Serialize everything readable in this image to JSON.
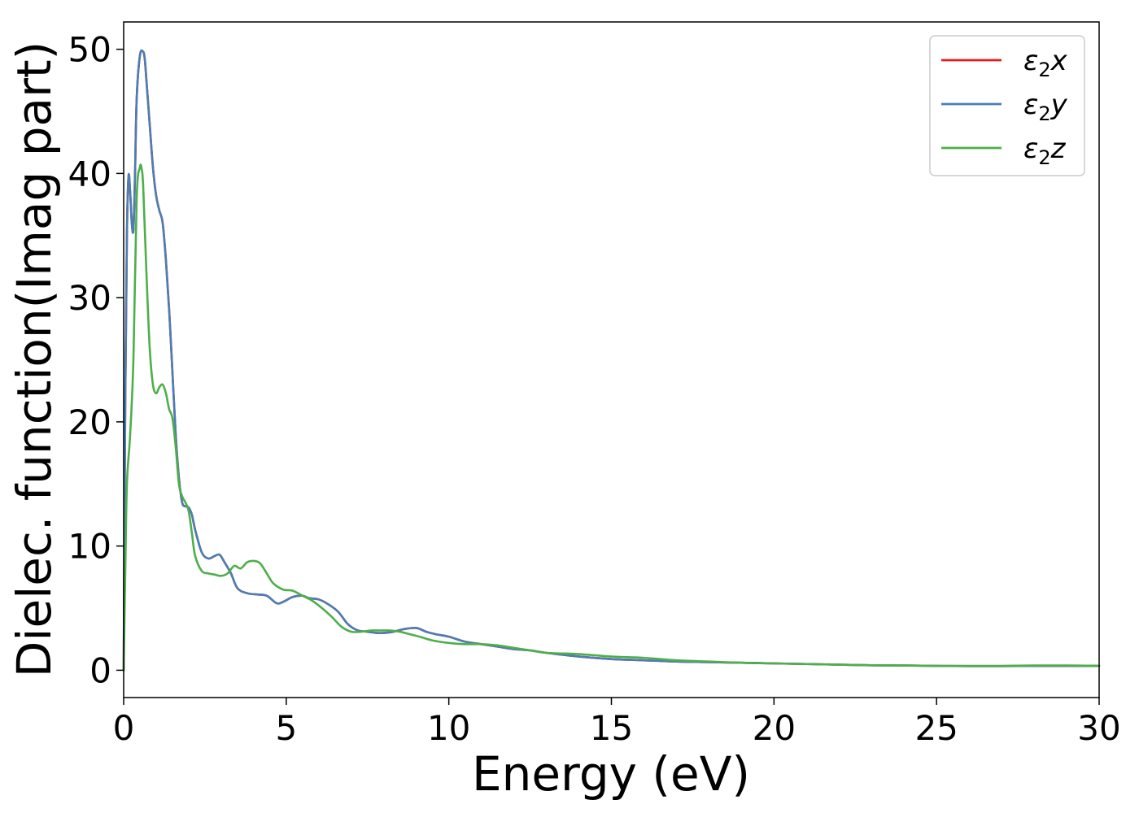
{
  "chart_data": {
    "type": "line",
    "xlabel": "Energy (eV)",
    "ylabel": "Dielec. function(Imag part)",
    "xlim": [
      0,
      30
    ],
    "ylim": [
      -2.2,
      52.2
    ],
    "xticks": [
      0,
      5,
      10,
      15,
      20,
      25,
      30
    ],
    "yticks": [
      0,
      10,
      20,
      30,
      40,
      50
    ],
    "grid": false,
    "legend_position": "top-right",
    "series": [
      {
        "name": "ε2x",
        "legend_base": "ε",
        "legend_sub": "2",
        "legend_suffix": "x",
        "color": "#e41a1c",
        "x": [
          0,
          0.05,
          0.1,
          0.15,
          0.2,
          0.25,
          0.3,
          0.35,
          0.4,
          0.5,
          0.6,
          0.65,
          0.7,
          0.8,
          0.9,
          1.0,
          1.1,
          1.2,
          1.3,
          1.4,
          1.5,
          1.6,
          1.7,
          1.8,
          1.9,
          2.0,
          2.1,
          2.2,
          2.4,
          2.6,
          2.8,
          2.95,
          3.1,
          3.3,
          3.5,
          3.8,
          4.1,
          4.4,
          4.7,
          4.9,
          5.2,
          5.5,
          5.7,
          6.0,
          6.3,
          6.6,
          6.9,
          7.2,
          7.5,
          7.8,
          8.0,
          8.3,
          8.6,
          9.0,
          9.3,
          9.6,
          10.0,
          10.5,
          11.0,
          11.5,
          12.0,
          12.5,
          13.0,
          14.0,
          15.0,
          16.0,
          17.0,
          18.0,
          19.0,
          20.0,
          21.0,
          22.0,
          23.0,
          24.0,
          25.0,
          26.0,
          27.0,
          28.0,
          29.0,
          30.0
        ],
        "values": [
          0,
          22,
          35,
          39.8,
          38.5,
          36,
          35.5,
          40,
          46,
          49.5,
          49.8,
          49.2,
          47.5,
          44,
          40.5,
          38.2,
          37,
          36,
          33,
          29,
          24,
          19,
          15.5,
          13.5,
          13.2,
          13.1,
          12.5,
          11.3,
          9.5,
          9.0,
          9.2,
          9.3,
          8.7,
          7.8,
          6.6,
          6.2,
          6.1,
          6.0,
          5.4,
          5.5,
          5.9,
          6.0,
          5.8,
          5.7,
          5.3,
          4.7,
          3.7,
          3.2,
          3.1,
          3.0,
          3.0,
          3.1,
          3.3,
          3.4,
          3.1,
          2.9,
          2.7,
          2.3,
          2.1,
          1.9,
          1.7,
          1.6,
          1.4,
          1.1,
          0.9,
          0.8,
          0.7,
          0.65,
          0.6,
          0.55,
          0.5,
          0.45,
          0.4,
          0.38,
          0.35,
          0.33,
          0.33,
          0.35,
          0.35,
          0.35
        ]
      },
      {
        "name": "ε2y",
        "legend_base": "ε",
        "legend_sub": "2",
        "legend_suffix": "y",
        "color": "#4a7eb4",
        "x": [
          0,
          0.05,
          0.1,
          0.15,
          0.2,
          0.25,
          0.3,
          0.35,
          0.4,
          0.5,
          0.6,
          0.65,
          0.7,
          0.8,
          0.9,
          1.0,
          1.1,
          1.2,
          1.3,
          1.4,
          1.5,
          1.6,
          1.7,
          1.8,
          1.9,
          2.0,
          2.1,
          2.2,
          2.4,
          2.6,
          2.8,
          2.95,
          3.1,
          3.3,
          3.5,
          3.8,
          4.1,
          4.4,
          4.7,
          4.9,
          5.2,
          5.5,
          5.7,
          6.0,
          6.3,
          6.6,
          6.9,
          7.2,
          7.5,
          7.8,
          8.0,
          8.3,
          8.6,
          9.0,
          9.3,
          9.6,
          10.0,
          10.5,
          11.0,
          11.5,
          12.0,
          12.5,
          13.0,
          14.0,
          15.0,
          16.0,
          17.0,
          18.0,
          19.0,
          20.0,
          21.0,
          22.0,
          23.0,
          24.0,
          25.0,
          26.0,
          27.0,
          28.0,
          29.0,
          30.0
        ],
        "values": [
          0,
          22,
          35,
          39.8,
          38.5,
          36,
          35.5,
          40,
          46,
          49.5,
          49.8,
          49.2,
          47.5,
          44,
          40.5,
          38.2,
          37,
          36,
          33,
          29,
          24,
          19,
          15.5,
          13.5,
          13.2,
          13.1,
          12.5,
          11.3,
          9.5,
          9.0,
          9.2,
          9.3,
          8.7,
          7.8,
          6.6,
          6.2,
          6.1,
          6.0,
          5.4,
          5.5,
          5.9,
          6.0,
          5.8,
          5.7,
          5.3,
          4.7,
          3.7,
          3.2,
          3.1,
          3.0,
          3.0,
          3.1,
          3.3,
          3.4,
          3.1,
          2.9,
          2.7,
          2.3,
          2.1,
          1.9,
          1.7,
          1.6,
          1.4,
          1.1,
          0.9,
          0.8,
          0.7,
          0.65,
          0.6,
          0.55,
          0.5,
          0.45,
          0.4,
          0.38,
          0.35,
          0.33,
          0.33,
          0.35,
          0.35,
          0.35
        ]
      },
      {
        "name": "ε2z",
        "legend_base": "ε",
        "legend_sub": "2",
        "legend_suffix": "z",
        "color": "#4daf4a",
        "x": [
          0,
          0.05,
          0.1,
          0.2,
          0.3,
          0.4,
          0.5,
          0.55,
          0.6,
          0.7,
          0.8,
          0.9,
          1.0,
          1.1,
          1.2,
          1.3,
          1.4,
          1.5,
          1.6,
          1.7,
          1.8,
          1.9,
          2.0,
          2.1,
          2.2,
          2.4,
          2.6,
          2.8,
          3.0,
          3.2,
          3.4,
          3.6,
          3.8,
          4.0,
          4.2,
          4.4,
          4.6,
          4.9,
          5.2,
          5.5,
          5.8,
          6.1,
          6.4,
          6.7,
          7.0,
          7.3,
          7.6,
          7.9,
          8.2,
          8.5,
          8.8,
          9.1,
          9.5,
          10.0,
          10.5,
          11.0,
          11.5,
          12.0,
          12.5,
          13.0,
          14.0,
          15.0,
          16.0,
          17.0,
          18.0,
          19.0,
          20.0,
          21.0,
          22.0,
          23.0,
          24.0,
          25.0,
          26.0,
          27.0,
          28.0,
          29.0,
          30.0
        ],
        "values": [
          0,
          8,
          15,
          19,
          25,
          38,
          40.5,
          40.4,
          39,
          32,
          26,
          23,
          22.3,
          22.8,
          23.0,
          22.3,
          21.0,
          20.3,
          18,
          15,
          14,
          13.5,
          12.8,
          11,
          9.2,
          8.0,
          7.8,
          7.7,
          7.6,
          7.8,
          8.4,
          8.2,
          8.7,
          8.8,
          8.6,
          7.8,
          7.0,
          6.5,
          6.4,
          6.0,
          5.6,
          5.0,
          4.3,
          3.5,
          3.1,
          3.1,
          3.2,
          3.2,
          3.2,
          3.1,
          2.9,
          2.7,
          2.4,
          2.2,
          2.1,
          2.1,
          2.0,
          1.8,
          1.6,
          1.4,
          1.3,
          1.1,
          1.0,
          0.8,
          0.7,
          0.6,
          0.55,
          0.5,
          0.45,
          0.4,
          0.38,
          0.35,
          0.35,
          0.35,
          0.38,
          0.38,
          0.35
        ]
      }
    ]
  }
}
